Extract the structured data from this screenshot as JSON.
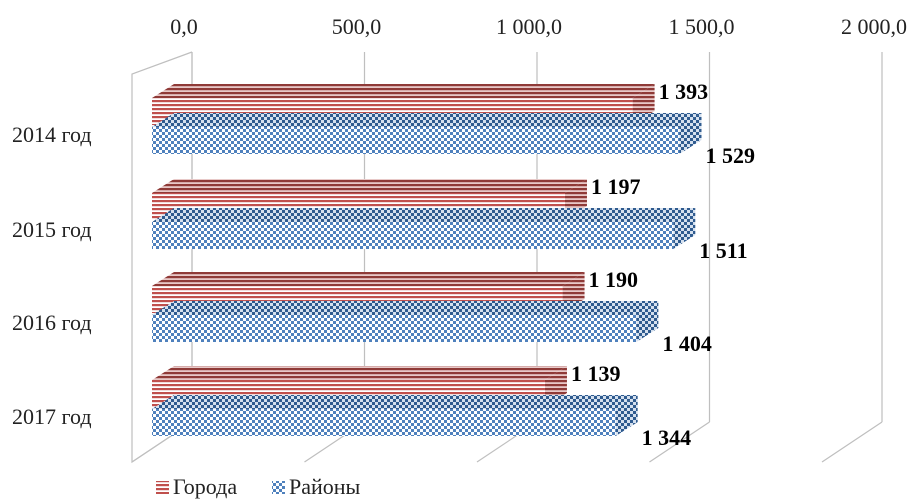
{
  "chart_data": {
    "type": "bar",
    "orientation": "horizontal",
    "style": "3d",
    "categories": [
      "2014 год",
      "2015 год",
      "2016 год",
      "2017 год"
    ],
    "series": [
      {
        "name": "Города",
        "values": [
          1393,
          1197,
          1190,
          1139
        ],
        "value_labels": [
          "1 393",
          "1 197",
          "1 190",
          "1 139"
        ],
        "color": "#c0504d",
        "pattern": "horizontal-stripes"
      },
      {
        "name": "Районы",
        "values": [
          1529,
          1511,
          1404,
          1344
        ],
        "value_labels": [
          "1 529",
          "1 511",
          "1 404",
          "1 344"
        ],
        "color": "#4f81bd",
        "pattern": "checkered"
      }
    ],
    "x_ticks": [
      0,
      500,
      1000,
      1500,
      2000
    ],
    "x_tick_labels": [
      "0,0",
      "500,0",
      "1 000,0",
      "1 500,0",
      "2 000,0"
    ],
    "xlim": [
      0,
      2000
    ],
    "axis_position": "top",
    "grid": true,
    "legend_position": "bottom-left"
  }
}
